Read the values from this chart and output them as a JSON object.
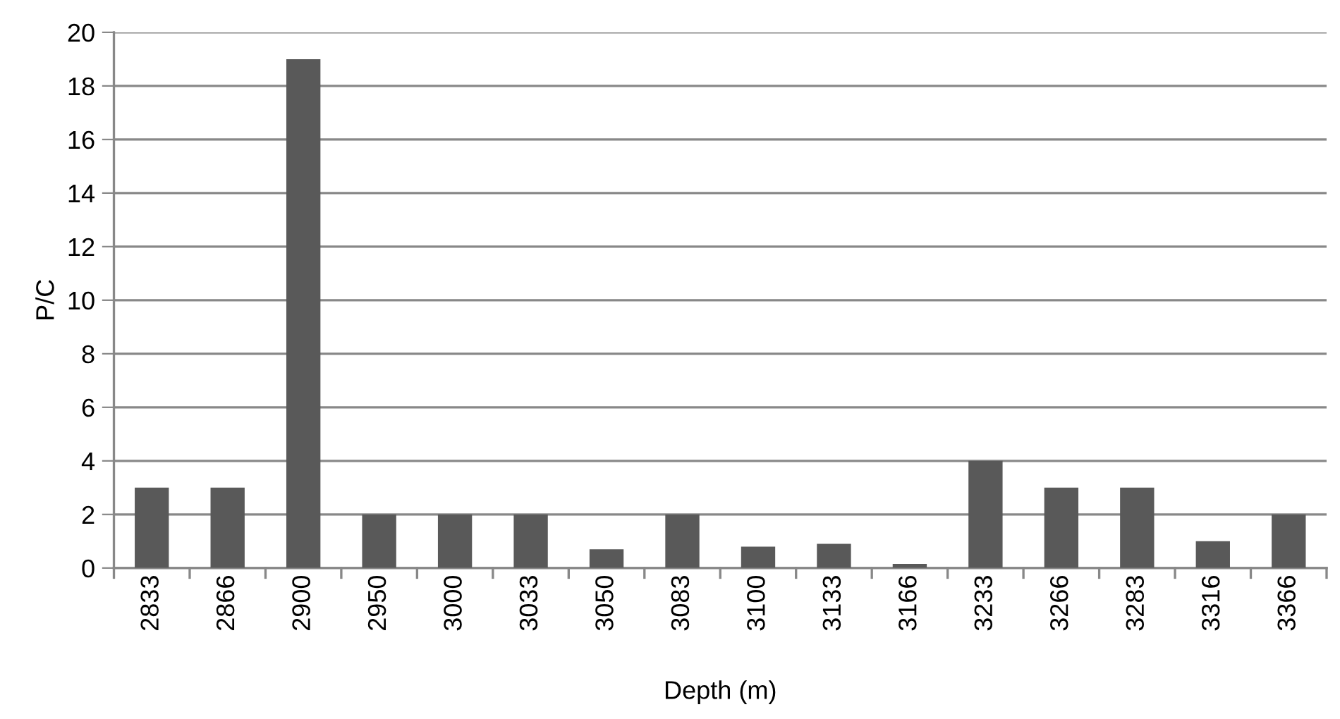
{
  "chart_data": {
    "type": "bar",
    "xlabel": "Depth (m)",
    "ylabel": "P/C",
    "categories": [
      "2833",
      "2866",
      "2900",
      "2950",
      "3000",
      "3033",
      "3050",
      "3083",
      "3100",
      "3133",
      "3166",
      "3233",
      "3266",
      "3283",
      "3316",
      "3366"
    ],
    "values": [
      3,
      3,
      19,
      2,
      2,
      2,
      0.7,
      2,
      0.8,
      0.9,
      0.15,
      4,
      3,
      3,
      1,
      2
    ],
    "color": "#595959",
    "ylim": [
      0,
      20
    ],
    "yticks": [
      0,
      2,
      4,
      6,
      8,
      10,
      12,
      14,
      16,
      18,
      20
    ],
    "grid": "y"
  }
}
